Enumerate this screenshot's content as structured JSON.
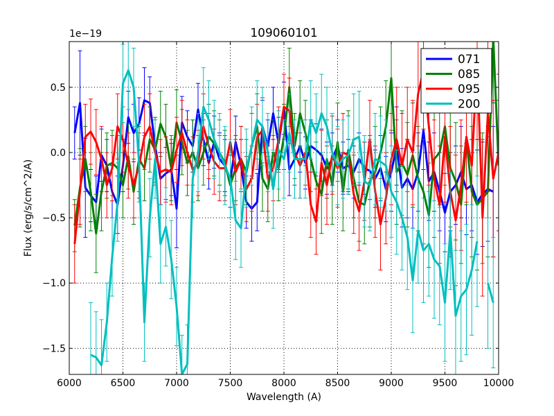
{
  "chart_data": {
    "type": "line",
    "title": "109060101",
    "xlabel": "Wavelength (A)",
    "ylabel": "Flux (erg/s/cm^2/A)",
    "y_scale_label": "1e−19",
    "xlim": [
      6000,
      10000
    ],
    "ylim": [
      -1.7,
      0.85
    ],
    "x_ticks": [
      6000,
      6500,
      7000,
      7500,
      8000,
      8500,
      9000,
      9500,
      10000
    ],
    "y_ticks": [
      -1.5,
      -1.0,
      -0.5,
      0.0,
      0.5
    ],
    "x_tick_labels": [
      "6000",
      "6500",
      "7000",
      "7500",
      "8000",
      "8500",
      "9000",
      "9500",
      "10000"
    ],
    "y_tick_labels": [
      "−1.5",
      "−1.0",
      "−0.5",
      "0.0",
      "0.5"
    ],
    "grid": true,
    "legend_position": "top-right",
    "x": [
      6050,
      6100,
      6150,
      6200,
      6250,
      6300,
      6350,
      6400,
      6450,
      6500,
      6550,
      6600,
      6650,
      6700,
      6750,
      6800,
      6850,
      6900,
      6950,
      7000,
      7050,
      7100,
      7150,
      7200,
      7250,
      7300,
      7350,
      7400,
      7450,
      7500,
      7550,
      7600,
      7650,
      7700,
      7750,
      7800,
      7850,
      7900,
      7950,
      8000,
      8050,
      8100,
      8150,
      8200,
      8250,
      8300,
      8350,
      8400,
      8450,
      8500,
      8550,
      8600,
      8650,
      8700,
      8750,
      8800,
      8850,
      8900,
      8950,
      9000,
      9050,
      9100,
      9150,
      9200,
      9250,
      9300,
      9350,
      9400,
      9450,
      9500,
      9550,
      9600,
      9650,
      9700,
      9750,
      9800,
      9850,
      9900,
      9950,
      10000
    ],
    "series": [
      {
        "name": "071",
        "color": "#0000ff",
        "values": [
          0.15,
          0.38,
          -0.27,
          -0.33,
          -0.38,
          -0.02,
          -0.1,
          -0.3,
          -0.4,
          -0.1,
          0.27,
          0.15,
          0.22,
          0.4,
          0.38,
          0.05,
          -0.2,
          -0.16,
          -0.13,
          -0.43,
          0.23,
          0.12,
          0.05,
          0.33,
          0.1,
          -0.08,
          0.08,
          -0.05,
          -0.1,
          -0.22,
          0.08,
          -0.1,
          -0.38,
          -0.43,
          -0.38,
          0.2,
          0.05,
          0.3,
          0.07,
          0.34,
          -0.13,
          -0.05,
          0.05,
          -0.08,
          0.05,
          0.02,
          -0.02,
          -0.12,
          -0.05,
          0.05,
          -0.12,
          -0.1,
          -0.15,
          -0.05,
          -0.12,
          -0.14,
          -0.2,
          -0.12,
          -0.28,
          -0.15,
          0.05,
          -0.27,
          -0.2,
          -0.28,
          -0.15,
          0.17,
          -0.22,
          -0.15,
          -0.3,
          -0.46,
          -0.3,
          -0.25,
          -0.15,
          -0.28,
          -0.25,
          -0.38,
          -0.32,
          -0.28,
          -0.3,
          null
        ],
        "errors": [
          0.2,
          0.4,
          0.38,
          0.2,
          0.2,
          0.2,
          0.2,
          0.2,
          0.22,
          0.2,
          0.2,
          0.22,
          0.2,
          0.25,
          0.2,
          0.2,
          0.2,
          0.2,
          0.2,
          0.3,
          0.2,
          0.2,
          0.2,
          0.2,
          0.2,
          0.2,
          0.2,
          0.2,
          0.2,
          0.2,
          0.2,
          0.2,
          0.2,
          0.25,
          0.22,
          0.2,
          0.2,
          0.2,
          0.2,
          0.2,
          0.2,
          0.2,
          0.2,
          0.2,
          0.2,
          0.2,
          0.2,
          0.2,
          0.2,
          0.2,
          0.2,
          0.2,
          0.2,
          0.2,
          0.2,
          0.22,
          0.22,
          0.25,
          0.25,
          0.3,
          0.3,
          0.3,
          0.3,
          0.3,
          0.3,
          0.3,
          0.3,
          0.3,
          0.3,
          0.3,
          0.3,
          0.3,
          0.35,
          0.35,
          0.35,
          0.4,
          0.4,
          0.4,
          0.5,
          null
        ]
      },
      {
        "name": "085",
        "color": "#008000",
        "values": [
          -0.56,
          -0.27,
          -0.05,
          -0.3,
          -0.62,
          -0.3,
          -0.1,
          -0.08,
          -0.12,
          -0.25,
          -0.03,
          -0.3,
          -0.05,
          -0.12,
          0.1,
          0.02,
          0.22,
          0.12,
          -0.12,
          0.23,
          0.08,
          -0.08,
          0.0,
          -0.12,
          0.0,
          0.12,
          0.07,
          0.0,
          -0.08,
          -0.25,
          -0.12,
          -0.05,
          -0.15,
          0.05,
          0.2,
          -0.2,
          -0.28,
          0.0,
          -0.12,
          0.12,
          0.5,
          0.05,
          0.3,
          0.15,
          -0.05,
          -0.22,
          -0.32,
          -0.05,
          -0.25,
          0.08,
          -0.3,
          0.02,
          -0.2,
          -0.38,
          -0.4,
          -0.22,
          -0.15,
          0.0,
          0.2,
          0.57,
          -0.15,
          -0.08,
          -0.17,
          -0.02,
          -0.2,
          -0.3,
          -0.48,
          -0.05,
          0.0,
          0.2,
          -0.12,
          -0.22,
          -0.4,
          0.1,
          -0.3,
          -0.4,
          -0.35,
          -0.3,
          0.88,
          -0.1
        ],
        "errors": [
          0.2,
          0.3,
          0.25,
          0.3,
          0.3,
          0.3,
          0.25,
          0.25,
          0.25,
          0.25,
          0.25,
          0.25,
          0.25,
          0.25,
          0.25,
          0.25,
          0.25,
          0.25,
          0.25,
          0.25,
          0.25,
          0.25,
          0.25,
          0.25,
          0.25,
          0.25,
          0.25,
          0.25,
          0.25,
          0.25,
          0.25,
          0.25,
          0.25,
          0.25,
          0.25,
          0.25,
          0.25,
          0.25,
          0.25,
          0.25,
          0.3,
          0.25,
          0.25,
          0.25,
          0.25,
          0.3,
          0.3,
          0.3,
          0.3,
          0.3,
          0.3,
          0.3,
          0.3,
          0.3,
          0.3,
          0.35,
          0.35,
          0.35,
          0.35,
          0.4,
          0.4,
          0.4,
          0.4,
          0.4,
          0.4,
          0.4,
          0.4,
          0.4,
          0.4,
          0.45,
          0.45,
          0.45,
          0.45,
          0.5,
          0.5,
          0.5,
          0.5,
          0.5,
          0.5,
          0.5
        ]
      },
      {
        "name": "095",
        "color": "#ff0000",
        "values": [
          -0.7,
          -0.3,
          0.12,
          0.16,
          0.08,
          -0.05,
          -0.25,
          -0.12,
          0.2,
          0.1,
          -0.1,
          -0.25,
          -0.1,
          0.12,
          0.2,
          0.0,
          -0.15,
          -0.13,
          -0.15,
          0.02,
          0.15,
          0.0,
          -0.13,
          -0.08,
          0.2,
          0.05,
          -0.07,
          -0.12,
          -0.12,
          0.08,
          -0.15,
          -0.05,
          -0.28,
          -0.2,
          0.12,
          0.17,
          -0.2,
          -0.12,
          0.1,
          0.35,
          0.32,
          0.0,
          -0.1,
          0.0,
          -0.4,
          -0.53,
          -0.08,
          -0.25,
          -0.02,
          -0.12,
          0.0,
          -0.02,
          -0.32,
          -0.45,
          -0.22,
          0.1,
          -0.3,
          -0.55,
          -0.35,
          -0.05,
          0.1,
          -0.1,
          0.1,
          0.0,
          0.45,
          0.63,
          0.2,
          -0.2,
          -0.4,
          0.12,
          -0.3,
          -0.52,
          -0.25,
          0.12,
          -0.1,
          0.7,
          -0.5,
          0.3,
          -0.2,
          0.0
        ],
        "errors": [
          0.3,
          0.25,
          0.25,
          0.25,
          0.25,
          0.25,
          0.25,
          0.25,
          0.25,
          0.25,
          0.25,
          0.25,
          0.25,
          0.25,
          0.25,
          0.25,
          0.25,
          0.25,
          0.25,
          0.25,
          0.25,
          0.25,
          0.25,
          0.25,
          0.25,
          0.25,
          0.25,
          0.25,
          0.25,
          0.25,
          0.25,
          0.25,
          0.25,
          0.25,
          0.25,
          0.25,
          0.25,
          0.25,
          0.25,
          0.25,
          0.25,
          0.25,
          0.25,
          0.25,
          0.25,
          0.25,
          0.25,
          0.3,
          0.3,
          0.3,
          0.3,
          0.3,
          0.3,
          0.3,
          0.3,
          0.3,
          0.35,
          0.35,
          0.35,
          0.35,
          0.4,
          0.4,
          0.4,
          0.4,
          0.4,
          0.45,
          0.45,
          0.45,
          0.45,
          0.5,
          0.5,
          0.5,
          0.5,
          0.5,
          0.55,
          0.6,
          0.6,
          0.6,
          0.6,
          0.6
        ]
      },
      {
        "name": "200",
        "color": "#00bfbf",
        "values": [
          null,
          null,
          null,
          -1.55,
          -1.57,
          -1.63,
          -1.3,
          -0.8,
          -0.38,
          0.53,
          0.63,
          0.5,
          -0.08,
          -1.3,
          -0.5,
          -0.05,
          -0.7,
          -0.57,
          -0.82,
          -1.18,
          -1.7,
          -1.62,
          -0.2,
          0.0,
          0.35,
          0.25,
          0.1,
          0.0,
          -0.1,
          -0.2,
          -0.52,
          -0.58,
          -0.12,
          0.05,
          0.25,
          0.2,
          0.0,
          -0.28,
          0.02,
          -0.05,
          0.15,
          -0.05,
          -0.05,
          -0.05,
          0.25,
          0.15,
          0.3,
          0.2,
          0.0,
          -0.1,
          -0.05,
          -0.02,
          0.1,
          0.12,
          -0.22,
          -0.25,
          -0.05,
          -0.07,
          -0.1,
          -0.3,
          -0.38,
          -0.5,
          -0.65,
          -0.98,
          -0.6,
          -0.75,
          -0.7,
          -0.82,
          -0.87,
          -1.15,
          -0.6,
          -1.25,
          -1.1,
          -1.05,
          -0.9,
          -0.68,
          null,
          -1.0,
          -1.15,
          null
        ],
        "errors": [
          null,
          null,
          null,
          0.4,
          0.35,
          0.35,
          0.3,
          0.3,
          0.3,
          0.3,
          0.3,
          0.3,
          0.3,
          0.3,
          0.3,
          0.3,
          0.3,
          0.3,
          0.3,
          0.3,
          0.3,
          0.3,
          0.3,
          0.3,
          0.3,
          0.3,
          0.3,
          0.3,
          0.3,
          0.3,
          0.3,
          0.3,
          0.3,
          0.3,
          0.3,
          0.3,
          0.3,
          0.3,
          0.3,
          0.3,
          0.3,
          0.3,
          0.3,
          0.3,
          0.3,
          0.3,
          0.3,
          0.3,
          0.3,
          0.3,
          0.3,
          0.3,
          0.35,
          0.35,
          0.35,
          0.35,
          0.35,
          0.35,
          0.35,
          0.35,
          0.4,
          0.4,
          0.4,
          0.4,
          0.4,
          0.4,
          0.4,
          0.45,
          0.45,
          0.45,
          0.45,
          0.5,
          0.5,
          0.5,
          0.5,
          0.5,
          null,
          0.5,
          0.5,
          null
        ]
      }
    ]
  }
}
